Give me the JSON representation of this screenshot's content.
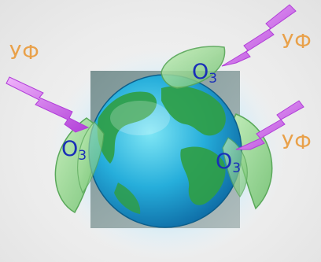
{
  "labels": {
    "uv_top_left": "УФ",
    "uv_top_right": "УФ",
    "uv_right": "УФ",
    "ozone_symbol": "O",
    "ozone_subscript": "3"
  },
  "icons": {
    "planet": "earth-globe-icon",
    "protective_layer": "ozone-leaf-icon",
    "radiation": "uv-lightning-arrow-icon"
  },
  "colors": {
    "uv_text": "#e9a14a",
    "ozone_text": "#1a2fb8",
    "uv_arrow": "#c64fe0",
    "leaf": "#8fd08a",
    "ocean": "#2fb6dc",
    "land": "#2f9e46",
    "backing_square": "#8aa0a0"
  }
}
